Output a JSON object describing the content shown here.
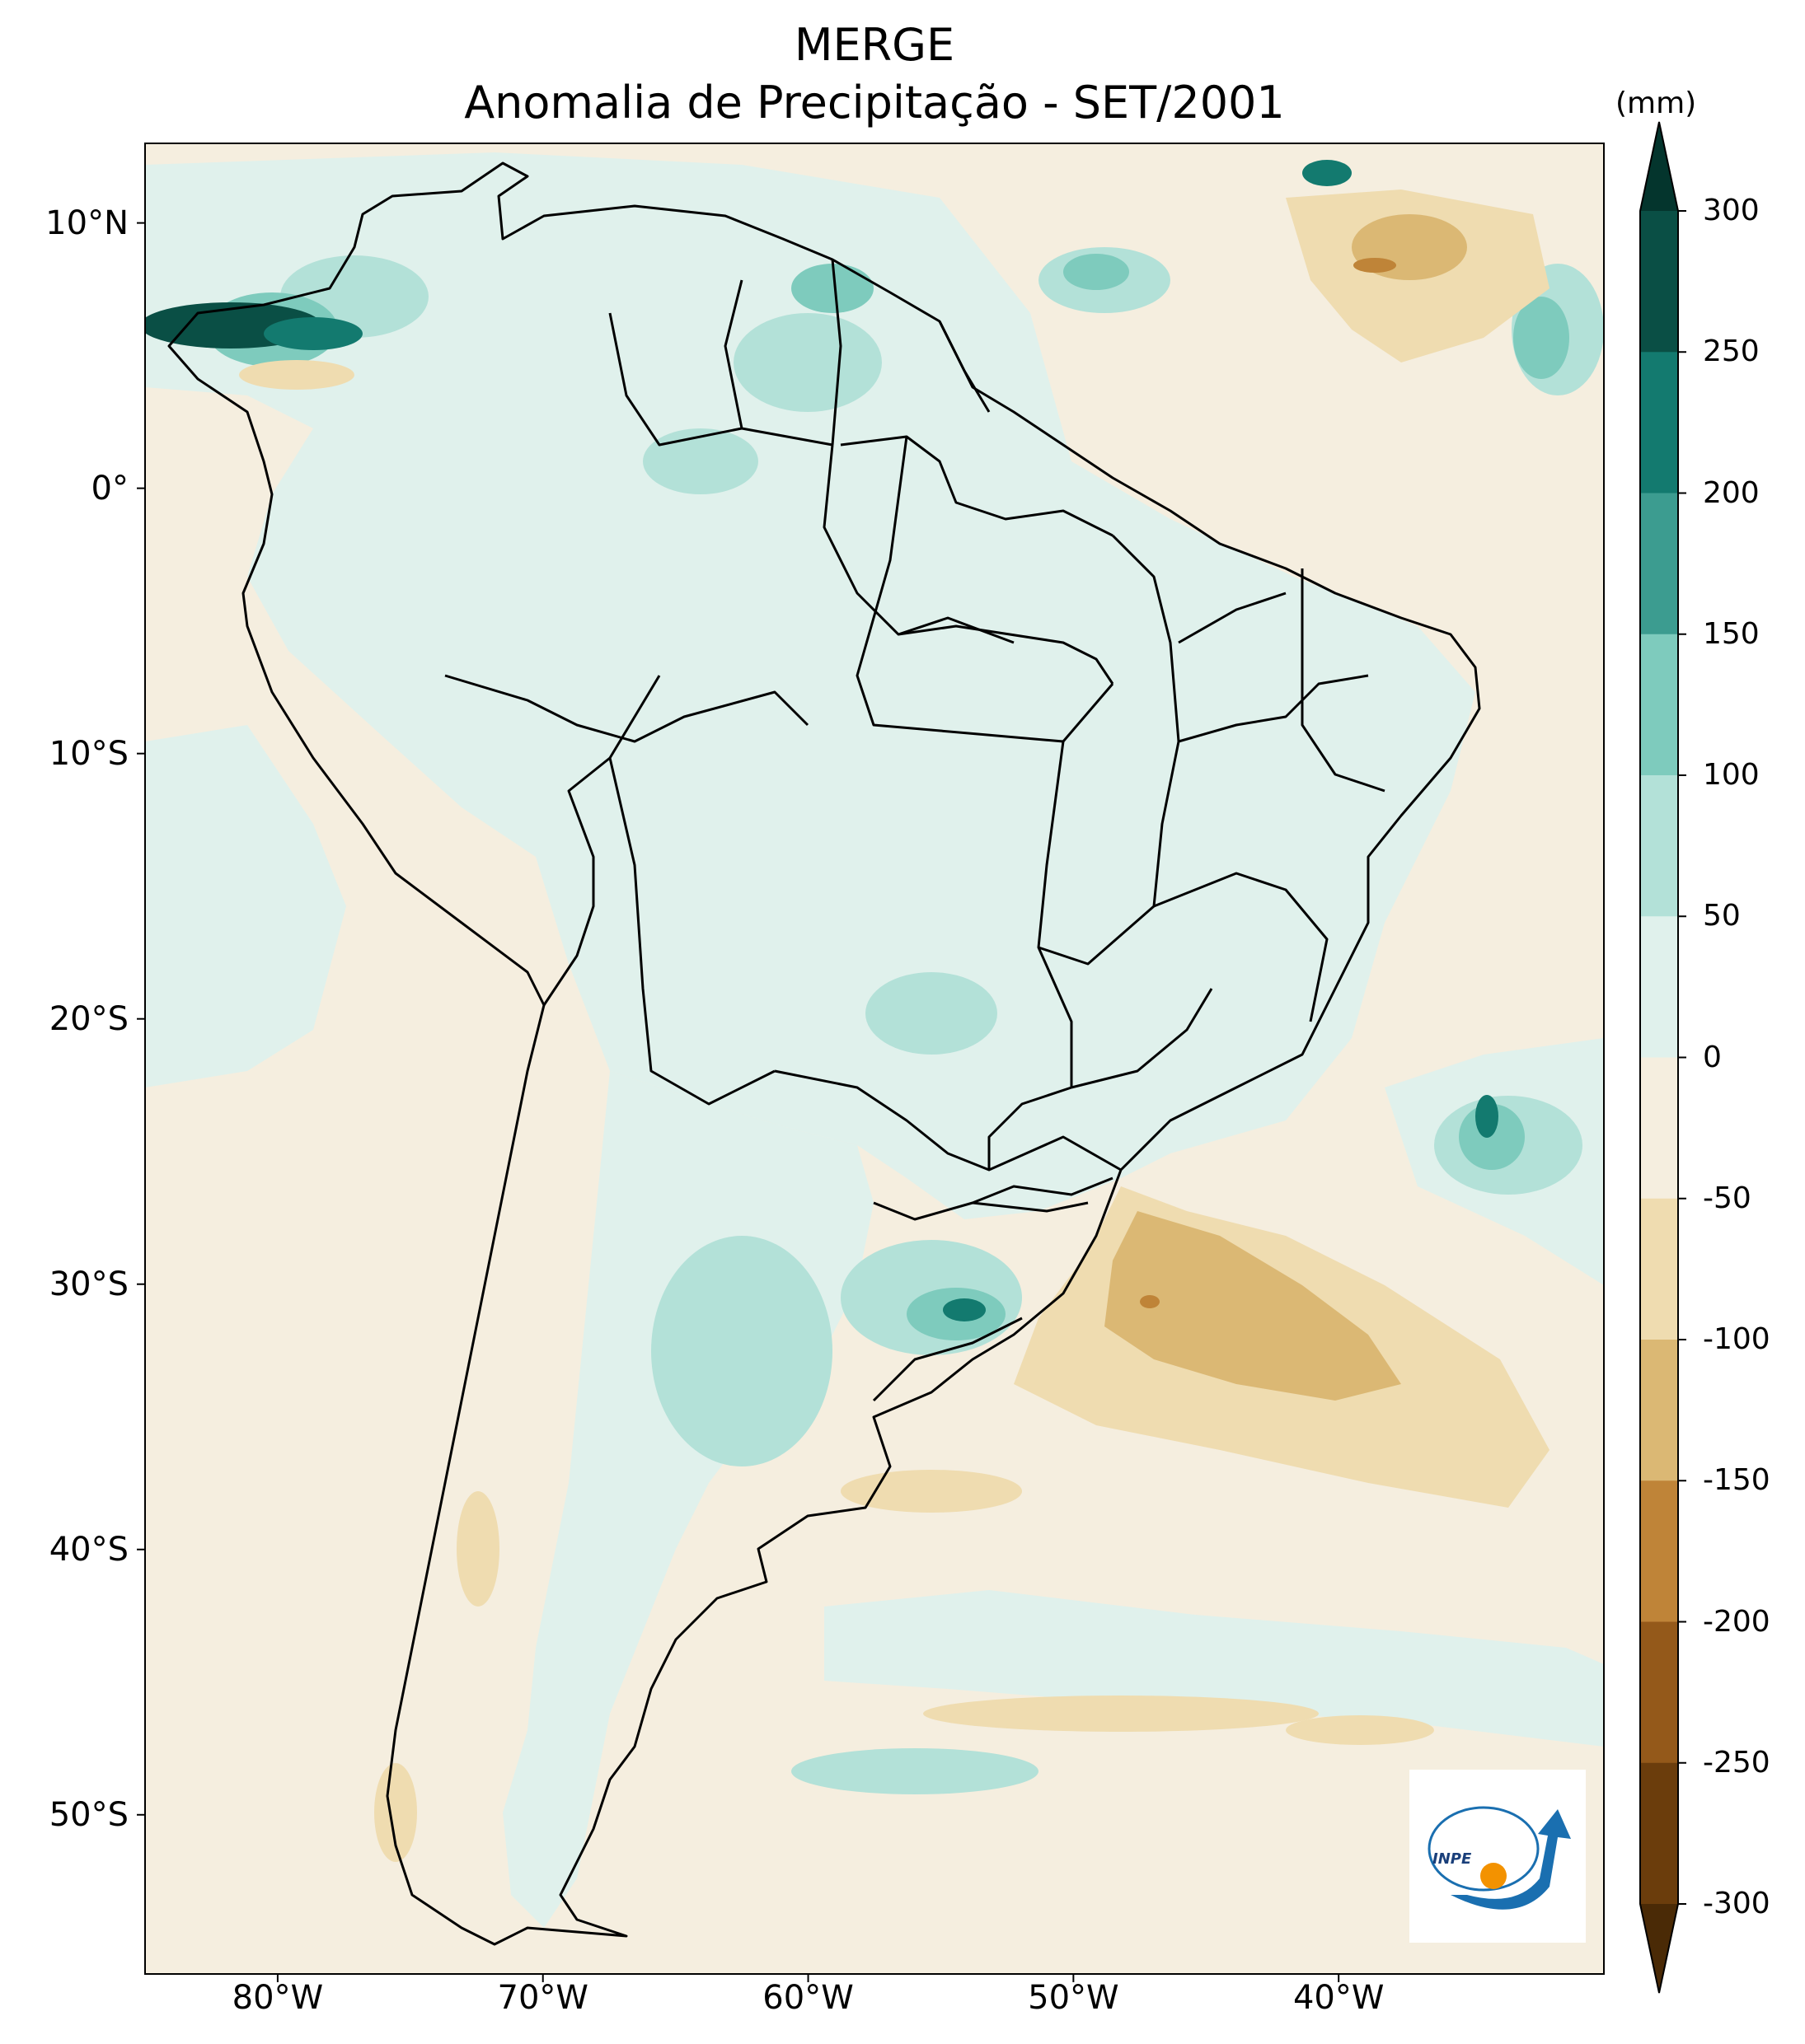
{
  "title": {
    "line1": "MERGE",
    "line2": "Anomalia de Precipitação - SET/2001"
  },
  "map": {
    "extent": {
      "lon_min": -85,
      "lon_max": -30,
      "lat_min": -56,
      "lat_max": 13
    },
    "latitude_labels": [
      {
        "lat": 10,
        "text": "10°N"
      },
      {
        "lat": 0,
        "text": "0°"
      },
      {
        "lat": -10,
        "text": "10°S"
      },
      {
        "lat": -20,
        "text": "20°S"
      },
      {
        "lat": -30,
        "text": "30°S"
      },
      {
        "lat": -40,
        "text": "40°S"
      },
      {
        "lat": -50,
        "text": "50°S"
      }
    ],
    "longitude_labels": [
      {
        "lon": -80,
        "text": "80°W"
      },
      {
        "lon": -70,
        "text": "70°W"
      },
      {
        "lon": -60,
        "text": "60°W"
      },
      {
        "lon": -50,
        "text": "50°W"
      },
      {
        "lon": -40,
        "text": "40°W"
      }
    ],
    "background_color": "#f5eedf",
    "coastline_color": "#000000"
  },
  "colorbar": {
    "unit": "(mm)",
    "ticks": [
      "300",
      "250",
      "200",
      "150",
      "100",
      "50",
      "0",
      "-50",
      "-100",
      "-150",
      "-200",
      "-250",
      "-300"
    ],
    "levels": [
      {
        "range": [
          250,
          300
        ],
        "color": "#0a4f45"
      },
      {
        "range": [
          200,
          250
        ],
        "color": "#137a6f"
      },
      {
        "range": [
          150,
          200
        ],
        "color": "#3c9c90"
      },
      {
        "range": [
          100,
          150
        ],
        "color": "#7ecbbd"
      },
      {
        "range": [
          50,
          100
        ],
        "color": "#b3e1d8"
      },
      {
        "range": [
          0,
          50
        ],
        "color": "#e0f1ec"
      },
      {
        "range": [
          -50,
          0
        ],
        "color": "#f5eedf"
      },
      {
        "range": [
          -100,
          -50
        ],
        "color": "#efdcb0"
      },
      {
        "range": [
          -150,
          -100
        ],
        "color": "#dbb874"
      },
      {
        "range": [
          -200,
          -150
        ],
        "color": "#bf8438"
      },
      {
        "range": [
          -250,
          -200
        ],
        "color": "#94591a"
      },
      {
        "range": [
          -300,
          -250
        ],
        "color": "#6b3d0c"
      }
    ],
    "extend_max_color": "#04352d",
    "extend_min_color": "#4a2a06"
  },
  "logo": {
    "text": "INPE"
  }
}
